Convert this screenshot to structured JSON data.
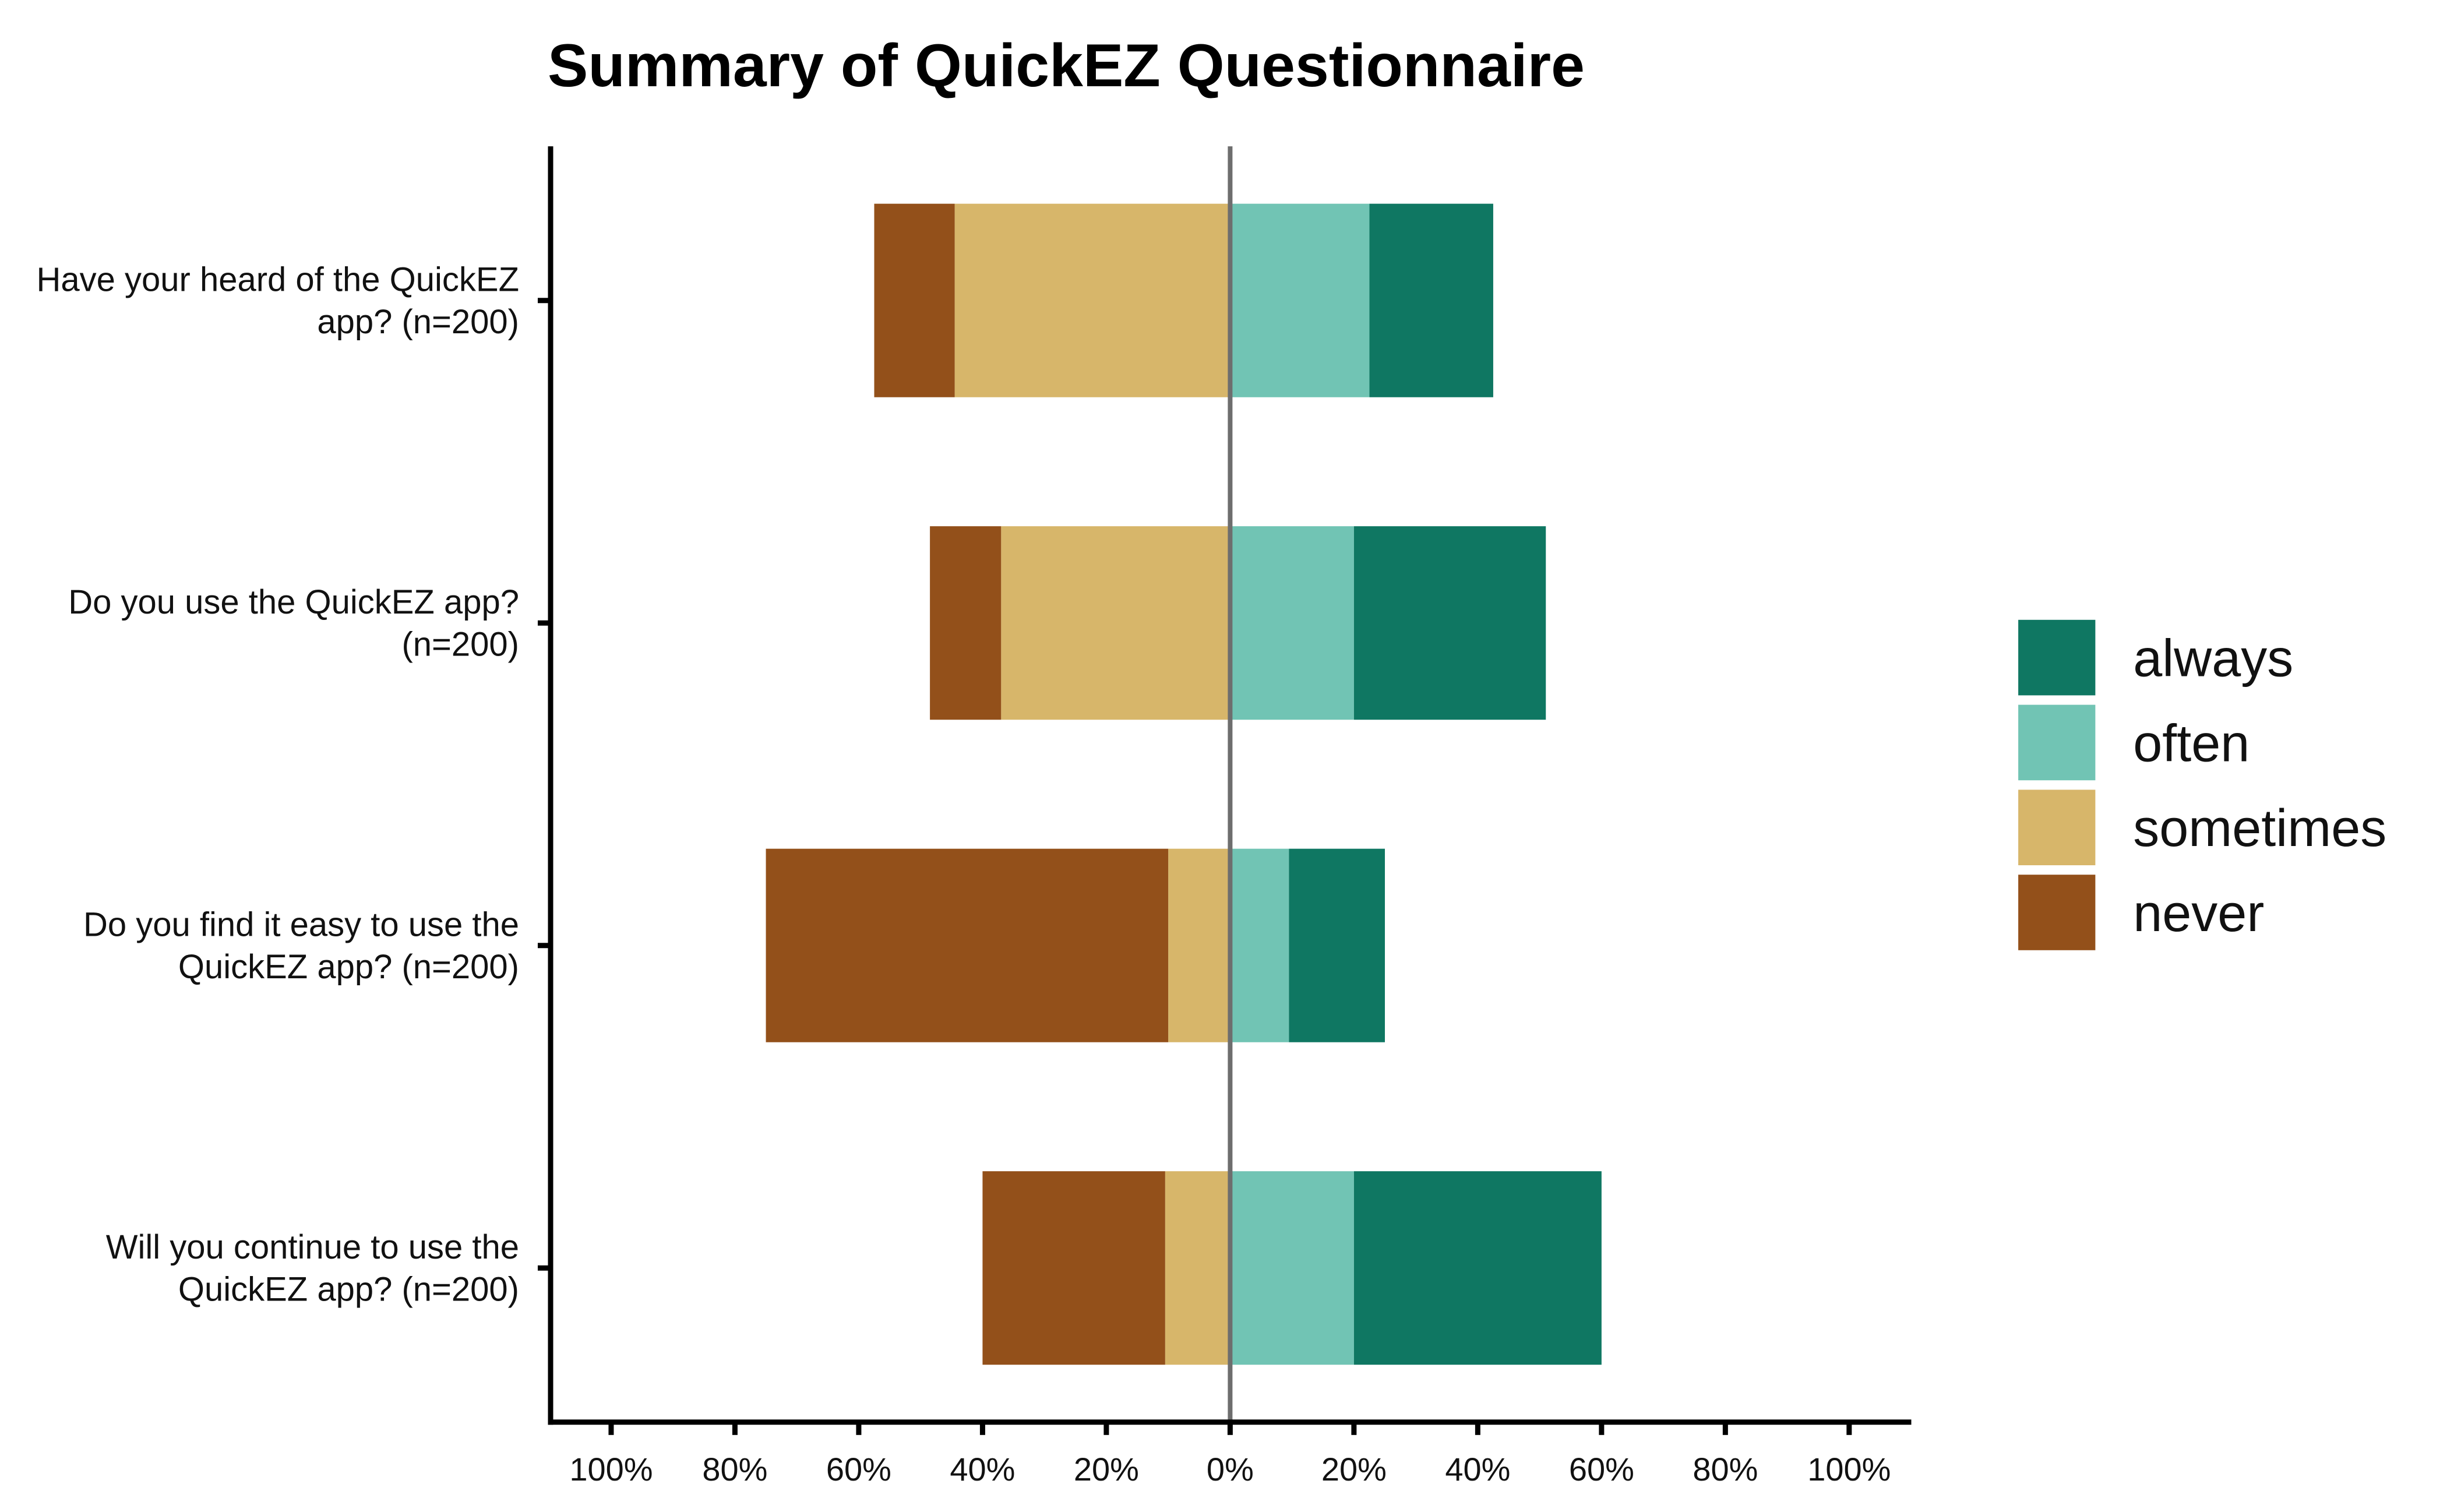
{
  "chart_data": {
    "type": "bar",
    "orientation": "horizontal-diverging",
    "title": "Summary of QuickEZ Questionnaire",
    "xlabel": "",
    "ylabel": "",
    "xlim": [
      -100,
      100
    ],
    "x_ticks": [
      "100%",
      "80%",
      "60%",
      "40%",
      "20%",
      "0%",
      "20%",
      "40%",
      "60%",
      "80%",
      "100%"
    ],
    "categories": [
      [
        "Have your heard of the QuickEZ",
        "app? (n=200)"
      ],
      [
        "Do you use the QuickEZ app?",
        "(n=200)"
      ],
      [
        "Do you find it easy to use the",
        "QuickEZ app? (n=200)"
      ],
      [
        "Will you continue to use the",
        "QuickEZ app? (n=200)"
      ]
    ],
    "series": [
      {
        "name": "never",
        "side": "negative",
        "color": "#93501A",
        "values": [
          13,
          11.5,
          65,
          29.5
        ]
      },
      {
        "name": "sometimes",
        "side": "negative",
        "color": "#D7B66A",
        "values": [
          44.5,
          37,
          10,
          10.5
        ]
      },
      {
        "name": "often",
        "side": "positive",
        "color": "#71C4B4",
        "values": [
          22.5,
          20,
          9.5,
          20
        ]
      },
      {
        "name": "always",
        "side": "positive",
        "color": "#0F7762",
        "values": [
          20,
          31,
          15.5,
          40
        ]
      }
    ],
    "legend_order": [
      "always",
      "often",
      "sometimes",
      "never"
    ],
    "legend_position": "right",
    "grid": false,
    "center_line": true
  }
}
